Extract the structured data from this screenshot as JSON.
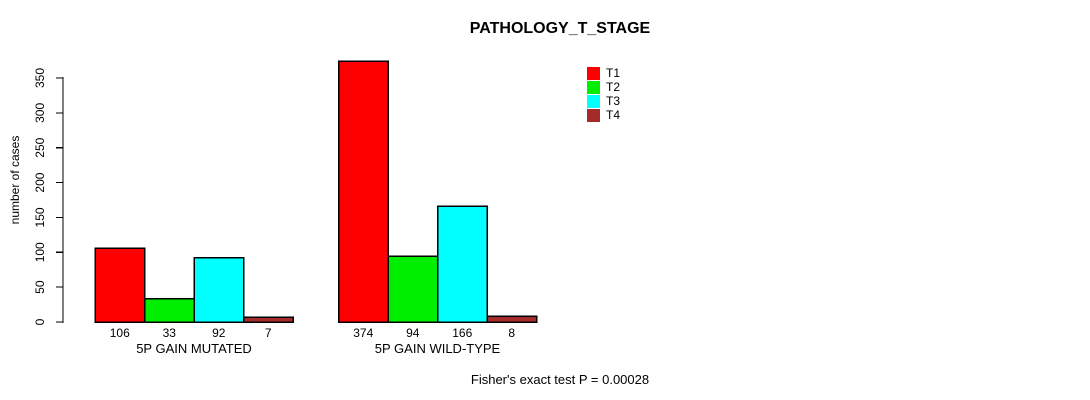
{
  "chart_data": {
    "type": "bar",
    "title": "PATHOLOGY_T_STAGE",
    "ylabel": "number of cases",
    "xlabel": "",
    "ylim": [
      0,
      350
    ],
    "yticks": [
      0,
      50,
      100,
      150,
      200,
      250,
      300,
      350
    ],
    "categories": [
      "5P GAIN MUTATED",
      "5P GAIN WILD-TYPE"
    ],
    "series": [
      {
        "name": "T1",
        "color": "#ff0000",
        "values": [
          106,
          374
        ]
      },
      {
        "name": "T2",
        "color": "#00ee00",
        "values": [
          33,
          94
        ]
      },
      {
        "name": "T3",
        "color": "#00ffff",
        "values": [
          92,
          166
        ]
      },
      {
        "name": "T4",
        "color": "#a52a2a",
        "values": [
          7,
          8
        ]
      }
    ],
    "bar_value_labels_shown": true,
    "legend_position": "top-right",
    "grid": false,
    "background_color": "#ffffff",
    "axis_color": "#000000"
  },
  "caption": "Fisher's exact test P = 0.00028"
}
